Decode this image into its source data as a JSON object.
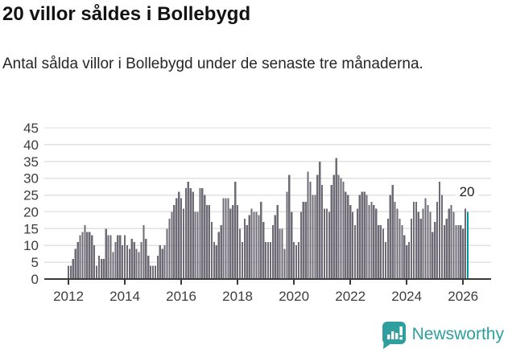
{
  "header": {
    "title": "20 villor såldes i Bollebygd",
    "subtitle": "Antal sålda villor i Bollebygd under de senaste tre månaderna."
  },
  "footer": {
    "brand": "Newsworthy"
  },
  "colors": {
    "bar": "#6E6B76",
    "highlight": "#009C9C",
    "grid": "#E2E2E2",
    "axis": "#3A3A3A",
    "brand": "#2E9E9E"
  },
  "chart_data": {
    "type": "bar",
    "title": "20 villor såldes i Bollebygd",
    "subtitle": "Antal sålda villor i Bollebygd under de senaste tre månaderna.",
    "x_start_month": "2012-01",
    "x_end_month": "2026-03",
    "ylim": [
      0,
      45
    ],
    "yticks": [
      0,
      5,
      10,
      15,
      20,
      25,
      30,
      35,
      40,
      45
    ],
    "xtick_years": [
      2012,
      2014,
      2016,
      2018,
      2020,
      2022,
      2024,
      2026
    ],
    "grid": true,
    "values": [
      4,
      4,
      6,
      9,
      11,
      13,
      14,
      16,
      14,
      14,
      13,
      10,
      4,
      7,
      6,
      6,
      15,
      13,
      13,
      8,
      11,
      13,
      13,
      10,
      13,
      10,
      9,
      12,
      11,
      9,
      8,
      11,
      16,
      12,
      7,
      4,
      4,
      4,
      7,
      10,
      9,
      10,
      15,
      18,
      20,
      22,
      24,
      26,
      24,
      21,
      27,
      29,
      27,
      26,
      20,
      20,
      27,
      27,
      25,
      22,
      22,
      17,
      11,
      10,
      14,
      16,
      24,
      24,
      24,
      21,
      22,
      29,
      22,
      15,
      11,
      18,
      16,
      19,
      21,
      20,
      20,
      19,
      23,
      17,
      11,
      11,
      11,
      16,
      19,
      22,
      15,
      15,
      9,
      26,
      31,
      20,
      11,
      10,
      11,
      20,
      23,
      23,
      32,
      29,
      25,
      25,
      31,
      35,
      28,
      21,
      21,
      20,
      28,
      31,
      36,
      31,
      30,
      29,
      26,
      25,
      22,
      20,
      16,
      21,
      25,
      26,
      26,
      25,
      22,
      23,
      22,
      21,
      16,
      16,
      15,
      11,
      18,
      25,
      28,
      23,
      21,
      18,
      16,
      13,
      10,
      11,
      18,
      23,
      23,
      20,
      18,
      21,
      24,
      22,
      20,
      14,
      17,
      23,
      29,
      25,
      16,
      18,
      21,
      22,
      20,
      16,
      16,
      16,
      15,
      21,
      20
    ],
    "highlight": {
      "index": 170,
      "value": 20,
      "label": "20"
    },
    "legend": null
  }
}
